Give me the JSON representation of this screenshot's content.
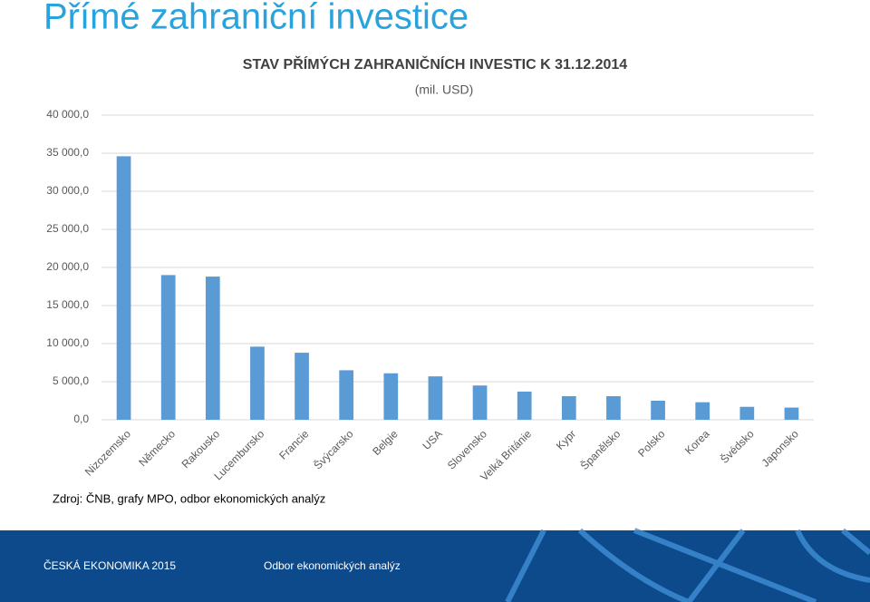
{
  "slide": {
    "title": "Přímé zahraniční investice",
    "source": "Zdroj: ČNB, grafy MPO, odbor ekonomických analýz",
    "footer_left": "ČESKÁ EKONOMIKA 2015",
    "footer_right": "Odbor ekonomických analýz"
  },
  "chart_data": {
    "type": "bar",
    "title": "STAV PŘÍMÝCH ZAHRANIČNÍCH INVESTIC K 31.12.2014",
    "subtitle": "(mil. USD)",
    "categories": [
      "Nizozemsko",
      "Německo",
      "Rakousko",
      "Lucembursko",
      "Francie",
      "Švýcarsko",
      "Belgie",
      "USA",
      "Slovensko",
      "Velká Británie",
      "Kypr",
      "Španělsko",
      "Polsko",
      "Korea",
      "Švédsko",
      "Japonsko"
    ],
    "values": [
      34600,
      19000,
      18800,
      9600,
      8800,
      6500,
      6100,
      5700,
      4500,
      3700,
      3100,
      3100,
      2500,
      2300,
      1700,
      1600
    ],
    "color": "#5b9bd5",
    "ylim": [
      0,
      40000
    ],
    "yticks": [
      {
        "value": 0,
        "label": "0,0"
      },
      {
        "value": 5000,
        "label": "5 000,0"
      },
      {
        "value": 10000,
        "label": "10 000,0"
      },
      {
        "value": 15000,
        "label": "15 000,0"
      },
      {
        "value": 20000,
        "label": "20 000,0"
      },
      {
        "value": 25000,
        "label": "25 000,0"
      },
      {
        "value": 30000,
        "label": "30 000,0"
      },
      {
        "value": 35000,
        "label": "35 000,0"
      },
      {
        "value": 40000,
        "label": "40 000,0"
      }
    ],
    "grid": true
  }
}
